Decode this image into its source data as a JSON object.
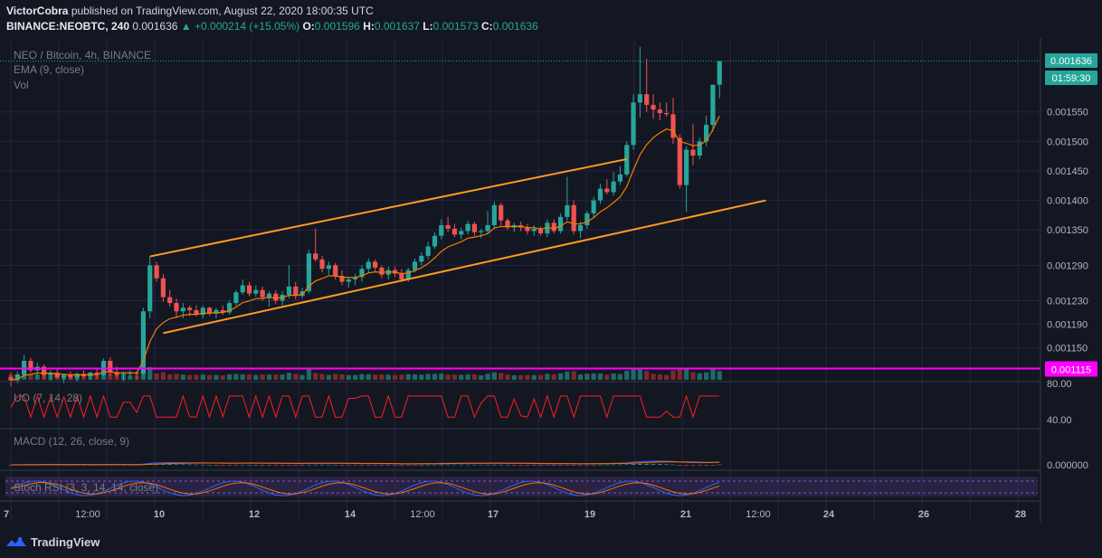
{
  "header": {
    "author": "VictorCobra",
    "published_text": "published on TradingView.com, August 22, 2020 18:00:35 UTC",
    "symbol": "BINANCE:NEOBTC, 240",
    "last": "0.001636",
    "change_arrow": "▲",
    "change": "+0.000214 (+15.05%)",
    "o_label": "O:",
    "o": "0.001596",
    "h_label": "H:",
    "h": "0.001637",
    "l_label": "L:",
    "l": "0.001573",
    "c_label": "C:",
    "c": "0.001636"
  },
  "legend": {
    "title": "NEO / Bitcoin, 4h, BINANCE",
    "ema": "EMA (9, close)",
    "vol": "Vol",
    "uo": "UO (7, 14, 28)",
    "macd": "MACD (12, 26, close, 9)",
    "stoch": "Stoch RSI (3, 3, 14, 14, close)"
  },
  "colors": {
    "background": "#131722",
    "up": "#26a69a",
    "down": "#ef5350",
    "vol_up": "#1e6a66",
    "vol_down": "#7a2a2e",
    "ema": "#f57c00",
    "channel": "#ff9a23",
    "hline": "#ff00ff",
    "grid": "#2a1f4a",
    "uo": "#ff1e1e",
    "macd": "#2962ff",
    "signal": "#ff6d00",
    "stoch_k": "#2962ff",
    "stoch_d": "#ff6d00"
  },
  "price_scale": [
    "0.001550",
    "0.001500",
    "0.001450",
    "0.001400",
    "0.001350",
    "0.001290",
    "0.001230",
    "0.001190",
    "0.001150"
  ],
  "price_tags": {
    "last": "0.001636",
    "countdown": "01:59:30",
    "level": "0.001115"
  },
  "uo_scale": [
    "80.00",
    "40.00"
  ],
  "macd_scale": [
    "0.000000"
  ],
  "time_axis": [
    "7",
    "12:00",
    "10",
    "12",
    "14",
    "12:00",
    "17",
    "19",
    "21",
    "12:00",
    "24",
    "26",
    "28"
  ],
  "branding": "TradingView",
  "chart_data": {
    "type": "candlestick",
    "timeframe": "4h",
    "symbol": "NEO / Bitcoin",
    "exchange": "BINANCE",
    "ohlc": [
      [
        0.0011,
        0.001108,
        0.001085,
        0.001095
      ],
      [
        0.001095,
        0.00111,
        0.00109,
        0.001105
      ],
      [
        0.001105,
        0.001138,
        0.0011,
        0.001128
      ],
      [
        0.001128,
        0.001133,
        0.001108,
        0.001112
      ],
      [
        0.001112,
        0.001125,
        0.0011,
        0.001118
      ],
      [
        0.001118,
        0.001122,
        0.001098,
        0.001104
      ],
      [
        0.001104,
        0.001112,
        0.001094,
        0.001108
      ],
      [
        0.001108,
        0.001114,
        0.001098,
        0.0011
      ],
      [
        0.0011,
        0.001106,
        0.00109,
        0.001104
      ],
      [
        0.001104,
        0.00111,
        0.001096,
        0.0011
      ],
      [
        0.0011,
        0.001108,
        0.001092,
        0.001106
      ],
      [
        0.001106,
        0.001112,
        0.0011,
        0.001102
      ],
      [
        0.001102,
        0.00111,
        0.001096,
        0.001108
      ],
      [
        0.001108,
        0.001114,
        0.001098,
        0.001104
      ],
      [
        0.001104,
        0.001132,
        0.001102,
        0.001128
      ],
      [
        0.001128,
        0.001134,
        0.001102,
        0.001108
      ],
      [
        0.001108,
        0.001118,
        0.0011,
        0.001104
      ],
      [
        0.001104,
        0.00111,
        0.001094,
        0.001106
      ],
      [
        0.001106,
        0.001112,
        0.0011,
        0.001108
      ],
      [
        0.001108,
        0.00111,
        0.001096,
        0.001106
      ],
      [
        0.001106,
        0.001218,
        0.001104,
        0.001212
      ],
      [
        0.001212,
        0.001305,
        0.0012,
        0.00129
      ],
      [
        0.00129,
        0.001296,
        0.001262,
        0.001268
      ],
      [
        0.001268,
        0.001275,
        0.001228,
        0.001236
      ],
      [
        0.001236,
        0.001248,
        0.00122,
        0.001226
      ],
      [
        0.001226,
        0.001234,
        0.0012,
        0.001212
      ],
      [
        0.001212,
        0.001226,
        0.0012,
        0.001218
      ],
      [
        0.001218,
        0.001222,
        0.001204,
        0.001214
      ],
      [
        0.001214,
        0.001222,
        0.001204,
        0.001206
      ],
      [
        0.001206,
        0.001222,
        0.0012,
        0.001218
      ],
      [
        0.001218,
        0.00122,
        0.001204,
        0.001208
      ],
      [
        0.001208,
        0.001218,
        0.0012,
        0.001214
      ],
      [
        0.001214,
        0.001222,
        0.001206,
        0.00121
      ],
      [
        0.00121,
        0.00123,
        0.001206,
        0.001226
      ],
      [
        0.001226,
        0.001248,
        0.001222,
        0.001244
      ],
      [
        0.001244,
        0.001266,
        0.00124,
        0.001256
      ],
      [
        0.001256,
        0.001262,
        0.001238,
        0.001242
      ],
      [
        0.001242,
        0.001256,
        0.001236,
        0.001248
      ],
      [
        0.001248,
        0.001254,
        0.00123,
        0.001236
      ],
      [
        0.001236,
        0.001246,
        0.00122,
        0.001242
      ],
      [
        0.001242,
        0.001248,
        0.001224,
        0.00123
      ],
      [
        0.00123,
        0.001246,
        0.001222,
        0.00124
      ],
      [
        0.00124,
        0.00129,
        0.001234,
        0.001254
      ],
      [
        0.001254,
        0.001262,
        0.001232,
        0.001238
      ],
      [
        0.001238,
        0.001252,
        0.001234,
        0.001246
      ],
      [
        0.001246,
        0.001316,
        0.001242,
        0.00131
      ],
      [
        0.00131,
        0.001352,
        0.001296,
        0.0013
      ],
      [
        0.0013,
        0.001306,
        0.001278,
        0.001284
      ],
      [
        0.001284,
        0.001296,
        0.001274,
        0.00129
      ],
      [
        0.00129,
        0.001294,
        0.001266,
        0.001272
      ],
      [
        0.001272,
        0.001282,
        0.001256,
        0.001262
      ],
      [
        0.001262,
        0.00127,
        0.001252,
        0.001266
      ],
      [
        0.001266,
        0.001276,
        0.001256,
        0.00127
      ],
      [
        0.00127,
        0.00129,
        0.001262,
        0.001284
      ],
      [
        0.001284,
        0.001302,
        0.001276,
        0.001296
      ],
      [
        0.001296,
        0.0013,
        0.00128,
        0.001286
      ],
      [
        0.001286,
        0.00129,
        0.001268,
        0.001274
      ],
      [
        0.001274,
        0.001288,
        0.001266,
        0.001282
      ],
      [
        0.001282,
        0.001288,
        0.00127,
        0.001276
      ],
      [
        0.001276,
        0.001284,
        0.001262,
        0.001266
      ],
      [
        0.001266,
        0.001286,
        0.001262,
        0.001282
      ],
      [
        0.001282,
        0.001302,
        0.001278,
        0.001296
      ],
      [
        0.001296,
        0.001312,
        0.00129,
        0.001306
      ],
      [
        0.001306,
        0.00133,
        0.0013,
        0.001322
      ],
      [
        0.001322,
        0.001346,
        0.001318,
        0.00134
      ],
      [
        0.00134,
        0.001368,
        0.001334,
        0.001358
      ],
      [
        0.001358,
        0.001372,
        0.001346,
        0.001352
      ],
      [
        0.001352,
        0.00136,
        0.001338,
        0.001342
      ],
      [
        0.001342,
        0.001354,
        0.001334,
        0.001348
      ],
      [
        0.001348,
        0.001366,
        0.001342,
        0.00136
      ],
      [
        0.00136,
        0.001364,
        0.00134,
        0.001346
      ],
      [
        0.001346,
        0.001352,
        0.001336,
        0.001348
      ],
      [
        0.001348,
        0.001382,
        0.001344,
        0.001358
      ],
      [
        0.001358,
        0.001398,
        0.001352,
        0.001392
      ],
      [
        0.001392,
        0.001396,
        0.001358,
        0.001366
      ],
      [
        0.001366,
        0.00137,
        0.00135,
        0.001354
      ],
      [
        0.001354,
        0.001362,
        0.001346,
        0.001358
      ],
      [
        0.001358,
        0.001364,
        0.001348,
        0.001354
      ],
      [
        0.001354,
        0.00136,
        0.001342,
        0.001348
      ],
      [
        0.001348,
        0.001358,
        0.00134,
        0.001352
      ],
      [
        0.001352,
        0.001356,
        0.00134,
        0.001344
      ],
      [
        0.001344,
        0.001368,
        0.001338,
        0.001362
      ],
      [
        0.001362,
        0.001368,
        0.001344,
        0.001348
      ],
      [
        0.001348,
        0.001378,
        0.001344,
        0.001372
      ],
      [
        0.001372,
        0.00144,
        0.001366,
        0.001392
      ],
      [
        0.001392,
        0.0014,
        0.001342,
        0.001348
      ],
      [
        0.001348,
        0.001364,
        0.001336,
        0.001358
      ],
      [
        0.001358,
        0.001382,
        0.001352,
        0.001378
      ],
      [
        0.001378,
        0.001406,
        0.001372,
        0.0014
      ],
      [
        0.0014,
        0.001428,
        0.001394,
        0.00142
      ],
      [
        0.00142,
        0.001436,
        0.00141,
        0.001414
      ],
      [
        0.001414,
        0.001448,
        0.001408,
        0.001432
      ],
      [
        0.001432,
        0.001458,
        0.001426,
        0.001444
      ],
      [
        0.001444,
        0.0015,
        0.00144,
        0.001494
      ],
      [
        0.001494,
        0.00158,
        0.001486,
        0.001566
      ],
      [
        0.001566,
        0.00166,
        0.00154,
        0.00158
      ],
      [
        0.00158,
        0.00164,
        0.00155,
        0.001562
      ],
      [
        0.001562,
        0.00158,
        0.001538,
        0.001554
      ],
      [
        0.001554,
        0.001566,
        0.001536,
        0.001548
      ],
      [
        0.001548,
        0.001566,
        0.001542,
        0.001546
      ],
      [
        0.001546,
        0.001574,
        0.001496,
        0.001506
      ],
      [
        0.001506,
        0.001512,
        0.00142,
        0.001426
      ],
      [
        0.001426,
        0.001492,
        0.00138,
        0.001486
      ],
      [
        0.001486,
        0.00153,
        0.00146,
        0.001476
      ],
      [
        0.001476,
        0.001506,
        0.00147,
        0.0015
      ],
      [
        0.0015,
        0.001544,
        0.001492,
        0.001528
      ],
      [
        0.001528,
        0.001594,
        0.001516,
        0.001596
      ],
      [
        0.001596,
        0.001637,
        0.001573,
        0.001636
      ]
    ],
    "volume_note": "volume bars share the price pane bottom",
    "ema_period": 9,
    "channel_upper": [
      [
        21,
        0.001305
      ],
      [
        93,
        0.00147
      ]
    ],
    "channel_lower": [
      [
        23,
        0.001175
      ],
      [
        114,
        0.0014
      ]
    ],
    "level_line": 0.001115,
    "ylim": [
      0.001105,
      0.00166
    ],
    "uo_ylim": [
      40,
      80
    ],
    "xlabel": "",
    "ylabel": ""
  }
}
